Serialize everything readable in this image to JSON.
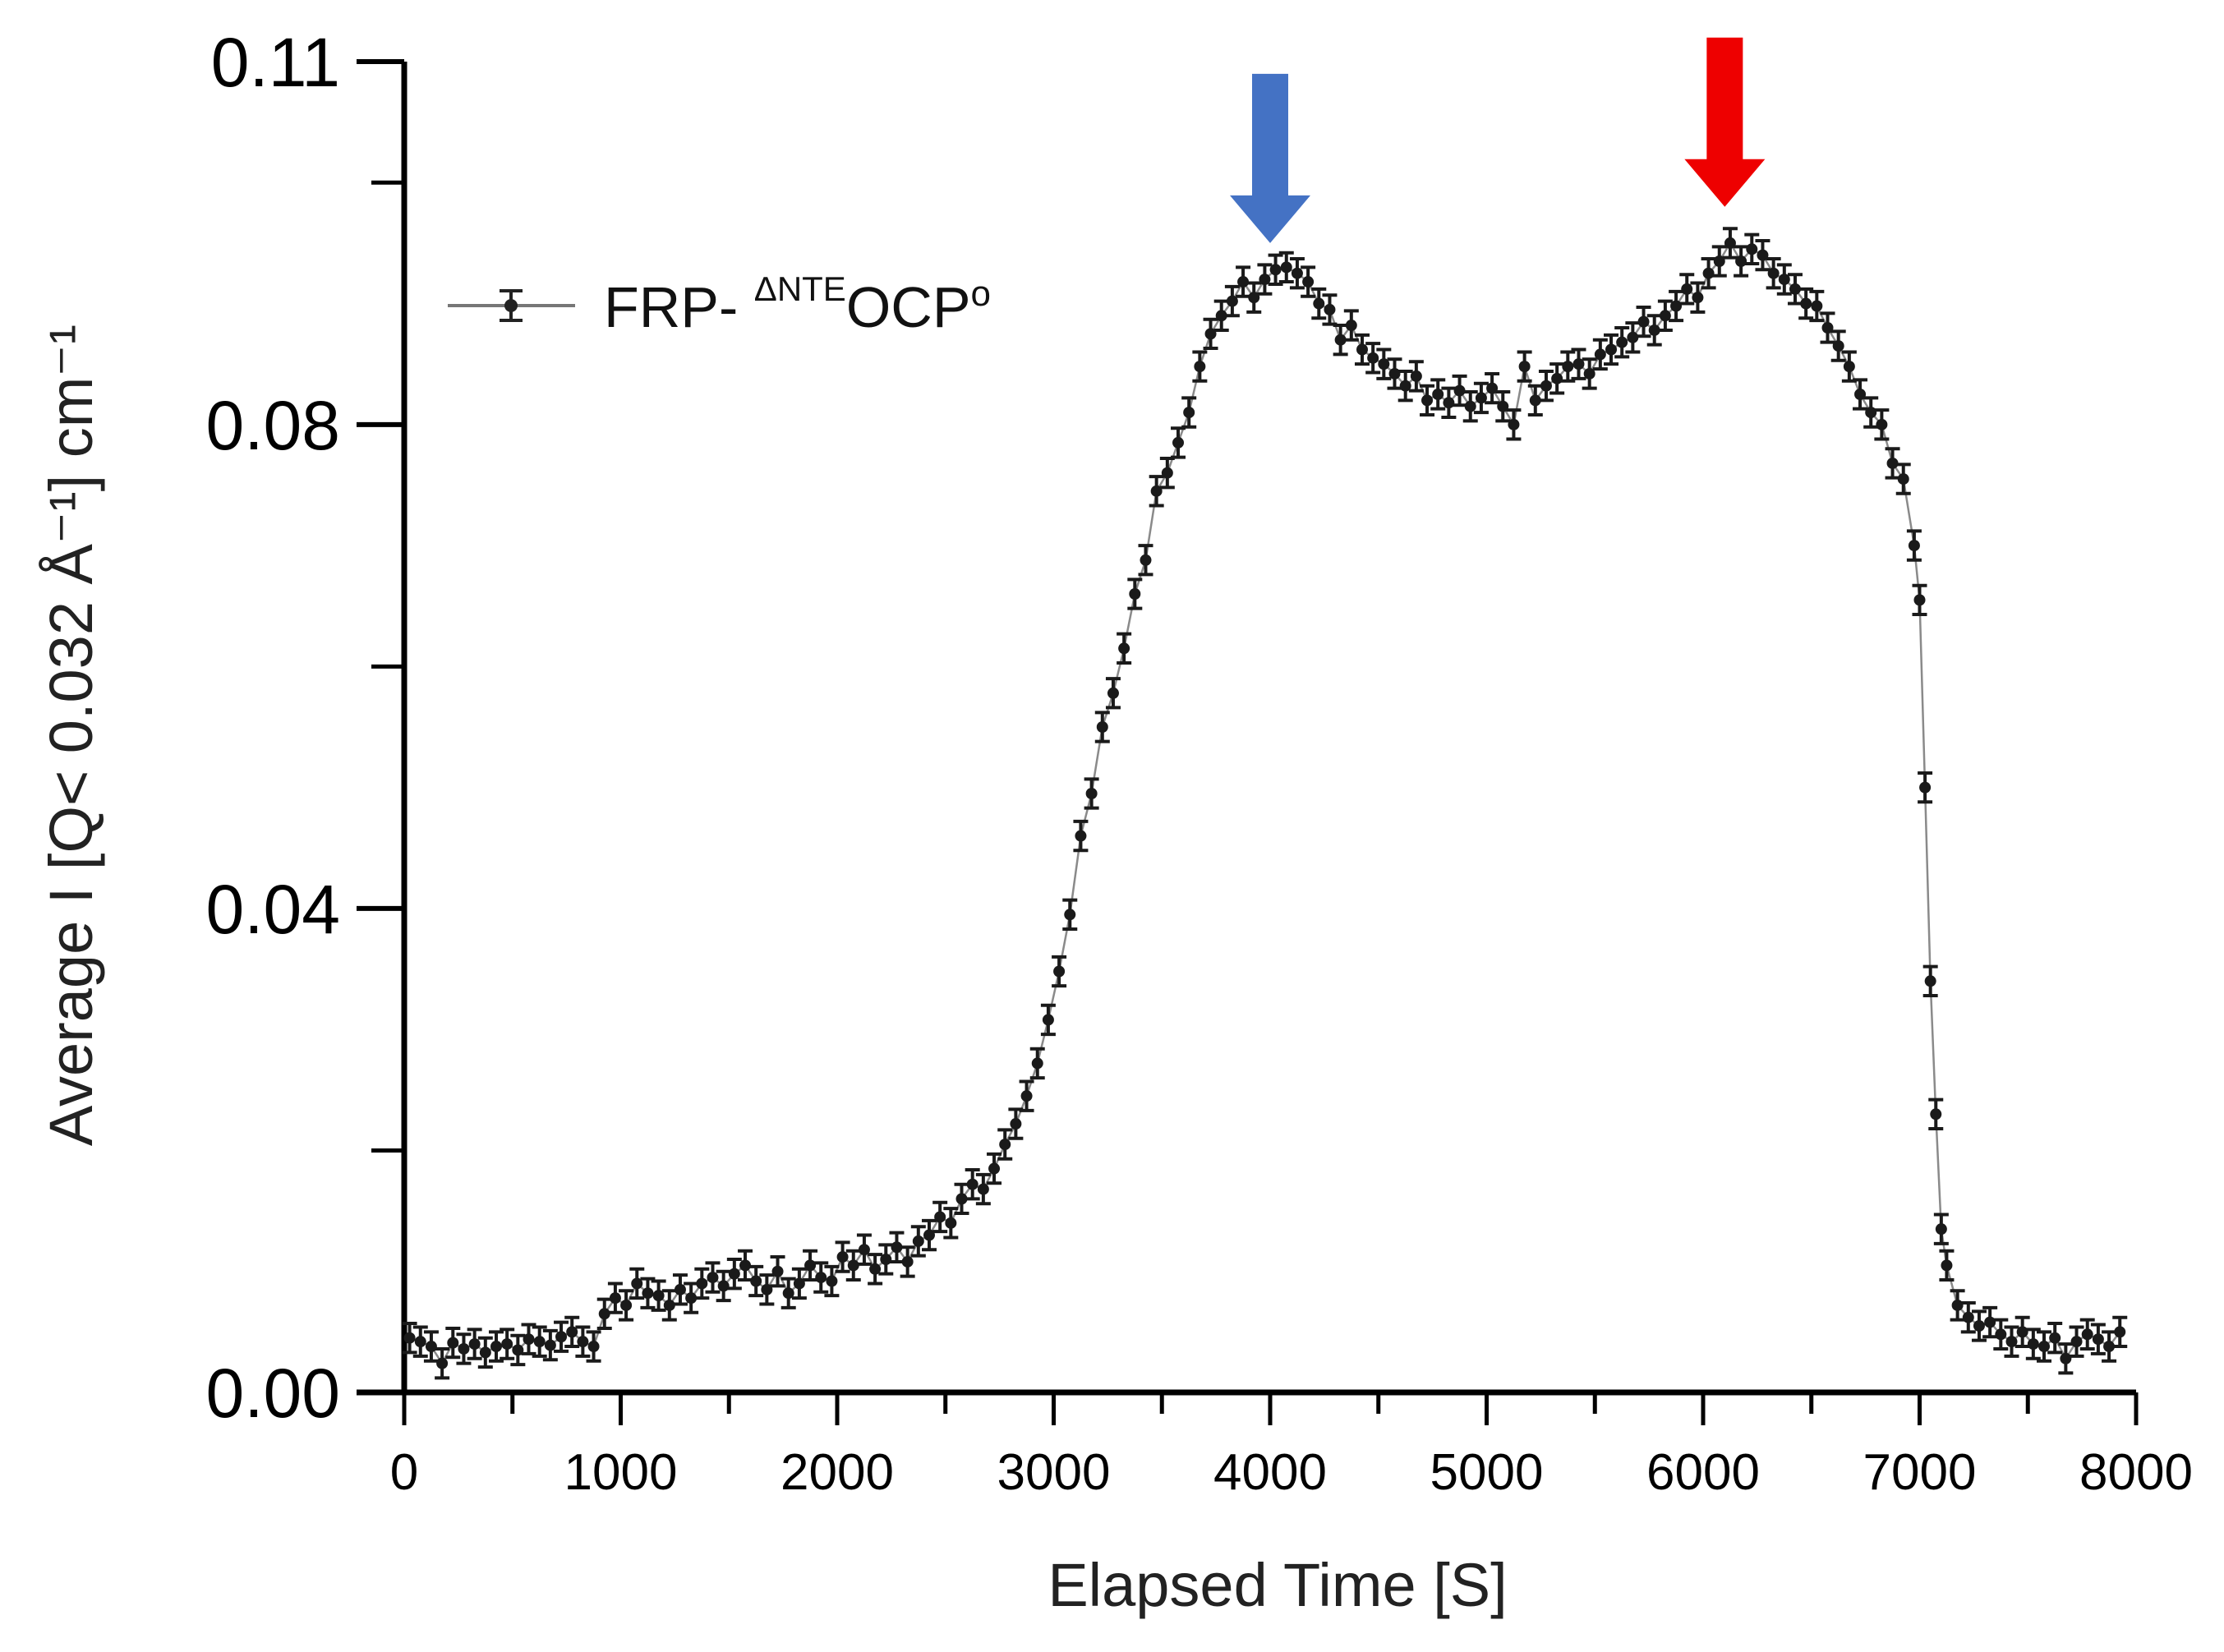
{
  "chart_data": {
    "type": "scatter",
    "title": "",
    "xlabel": "Elapsed Time [S]",
    "ylabel": "Average I [Q< 0.032 Å⁻¹] cm⁻¹",
    "xlim": [
      0,
      8000
    ],
    "ylim": [
      0,
      0.11
    ],
    "x_ticks": [
      0,
      1000,
      2000,
      3000,
      4000,
      5000,
      6000,
      7000,
      8000
    ],
    "x_tick_labels": [
      "0",
      "1000",
      "2000",
      "3000",
      "4000",
      "5000",
      "6000",
      "7000",
      "8000"
    ],
    "y_ticks": [
      0.0,
      0.04,
      0.08,
      0.11
    ],
    "y_tick_labels": [
      "0.00",
      "0.04",
      "0.08",
      "0.11"
    ],
    "y_minor_ticks": [
      0.02,
      0.06,
      0.1
    ],
    "grid": false,
    "legend": {
      "position": "top-left",
      "entries": [
        {
          "name_main": "FRP- ",
          "name_sup": "ΔNTE",
          "name_tail": "OCP",
          "name_sup2": "o"
        }
      ]
    },
    "annotations": [
      {
        "type": "arrow",
        "direction": "down",
        "x": 4000,
        "y": 0.095,
        "color": "#4472c4"
      },
      {
        "type": "arrow",
        "direction": "down",
        "x": 6100,
        "y": 0.098,
        "color": "#ee0000"
      }
    ],
    "series": [
      {
        "name": "FRP-ΔNTEOCPo",
        "color": "#1a1a1a",
        "error": 0.0012,
        "x": [
          25,
          75,
          125,
          175,
          225,
          275,
          325,
          375,
          425,
          475,
          525,
          575,
          625,
          675,
          725,
          775,
          825,
          875,
          925,
          975,
          1025,
          1075,
          1125,
          1175,
          1225,
          1275,
          1325,
          1375,
          1425,
          1475,
          1525,
          1575,
          1625,
          1675,
          1725,
          1775,
          1825,
          1875,
          1925,
          1975,
          2025,
          2075,
          2125,
          2175,
          2225,
          2275,
          2325,
          2375,
          2425,
          2475,
          2525,
          2575,
          2625,
          2675,
          2725,
          2775,
          2825,
          2875,
          2925,
          2975,
          3025,
          3075,
          3125,
          3175,
          3225,
          3275,
          3325,
          3375,
          3425,
          3475,
          3525,
          3575,
          3625,
          3675,
          3725,
          3775,
          3825,
          3875,
          3925,
          3975,
          4025,
          4075,
          4125,
          4175,
          4225,
          4275,
          4325,
          4375,
          4425,
          4475,
          4525,
          4575,
          4625,
          4675,
          4725,
          4775,
          4825,
          4875,
          4925,
          4975,
          5025,
          5075,
          5125,
          5175,
          5225,
          5275,
          5325,
          5375,
          5425,
          5475,
          5525,
          5575,
          5625,
          5675,
          5725,
          5775,
          5825,
          5875,
          5925,
          5975,
          6025,
          6075,
          6125,
          6175,
          6225,
          6275,
          6325,
          6375,
          6425,
          6475,
          6525,
          6575,
          6625,
          6675,
          6725,
          6775,
          6825,
          6875,
          6925,
          6975,
          7000,
          7025,
          7050,
          7075,
          7100,
          7125,
          7175,
          7225,
          7275,
          7325,
          7375,
          7425,
          7475,
          7525,
          7575,
          7625,
          7675,
          7725,
          7775,
          7825,
          7875,
          7925
        ],
        "y": [
          0.0045,
          0.0042,
          0.0038,
          0.0024,
          0.0041,
          0.0036,
          0.004,
          0.0033,
          0.0038,
          0.004,
          0.0035,
          0.0044,
          0.0042,
          0.0039,
          0.0046,
          0.005,
          0.0042,
          0.0038,
          0.0065,
          0.0078,
          0.0072,
          0.009,
          0.0082,
          0.008,
          0.0072,
          0.0085,
          0.0078,
          0.009,
          0.0095,
          0.0088,
          0.0098,
          0.0105,
          0.0092,
          0.0085,
          0.01,
          0.0082,
          0.009,
          0.0105,
          0.0095,
          0.0092,
          0.0112,
          0.0105,
          0.0118,
          0.0102,
          0.011,
          0.012,
          0.0108,
          0.0125,
          0.013,
          0.0145,
          0.014,
          0.016,
          0.0172,
          0.0168,
          0.0185,
          0.0205,
          0.0222,
          0.0245,
          0.0272,
          0.0308,
          0.0348,
          0.0395,
          0.046,
          0.0495,
          0.055,
          0.0578,
          0.0615,
          0.066,
          0.0688,
          0.0745,
          0.076,
          0.0785,
          0.081,
          0.0848,
          0.0875,
          0.089,
          0.0902,
          0.0918,
          0.0905,
          0.092,
          0.0928,
          0.093,
          0.0925,
          0.0918,
          0.09,
          0.0895,
          0.087,
          0.0882,
          0.0862,
          0.0855,
          0.085,
          0.0842,
          0.0832,
          0.084,
          0.082,
          0.0825,
          0.0818,
          0.0828,
          0.0815,
          0.0822,
          0.083,
          0.0815,
          0.08,
          0.0848,
          0.082,
          0.0832,
          0.0838,
          0.0848,
          0.085,
          0.0842,
          0.0858,
          0.0862,
          0.0868,
          0.0872,
          0.0885,
          0.0878,
          0.089,
          0.0898,
          0.0912,
          0.0905,
          0.0925,
          0.0935,
          0.095,
          0.0935,
          0.0945,
          0.094,
          0.0925,
          0.092,
          0.0912,
          0.09,
          0.0898,
          0.088,
          0.0865,
          0.0848,
          0.0825,
          0.081,
          0.08,
          0.0768,
          0.0755,
          0.07,
          0.0655,
          0.05,
          0.034,
          0.023,
          0.0135,
          0.0105,
          0.0072,
          0.0062,
          0.0055,
          0.0058,
          0.0048,
          0.0042,
          0.005,
          0.004,
          0.0038,
          0.0045,
          0.0028,
          0.0042,
          0.0048,
          0.0044,
          0.0038,
          0.005
        ]
      }
    ]
  }
}
